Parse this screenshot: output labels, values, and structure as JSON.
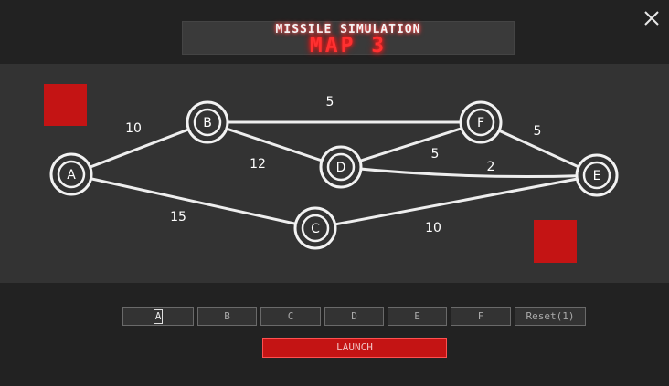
{
  "title": {
    "top": "MISSILE SIMULATION",
    "main": "MAP 3"
  },
  "colors": {
    "background": "#222222",
    "map": "#333333",
    "accent": "#c41414",
    "edge": "#eeeeee",
    "target": "#c41414"
  },
  "icons": {
    "close": "close-icon"
  },
  "graph": {
    "nodes": [
      {
        "id": "A",
        "label": "A"
      },
      {
        "id": "B",
        "label": "B"
      },
      {
        "id": "C",
        "label": "C"
      },
      {
        "id": "D",
        "label": "D"
      },
      {
        "id": "E",
        "label": "E"
      },
      {
        "id": "F",
        "label": "F"
      }
    ],
    "edges": [
      {
        "from": "A",
        "to": "B",
        "weight": "10"
      },
      {
        "from": "A",
        "to": "C",
        "weight": "15"
      },
      {
        "from": "B",
        "to": "F",
        "weight": "5"
      },
      {
        "from": "B",
        "to": "D",
        "weight": "12"
      },
      {
        "from": "D",
        "to": "F",
        "weight": "5"
      },
      {
        "from": "D",
        "to": "E",
        "weight": "2"
      },
      {
        "from": "F",
        "to": "E",
        "weight": "5"
      },
      {
        "from": "C",
        "to": "E",
        "weight": "10"
      }
    ]
  },
  "controls": {
    "node_buttons": [
      "A",
      "B",
      "C",
      "D",
      "E",
      "F"
    ],
    "selected": "A",
    "reset_label": "Reset(1)",
    "launch_label": "LAUNCH"
  }
}
